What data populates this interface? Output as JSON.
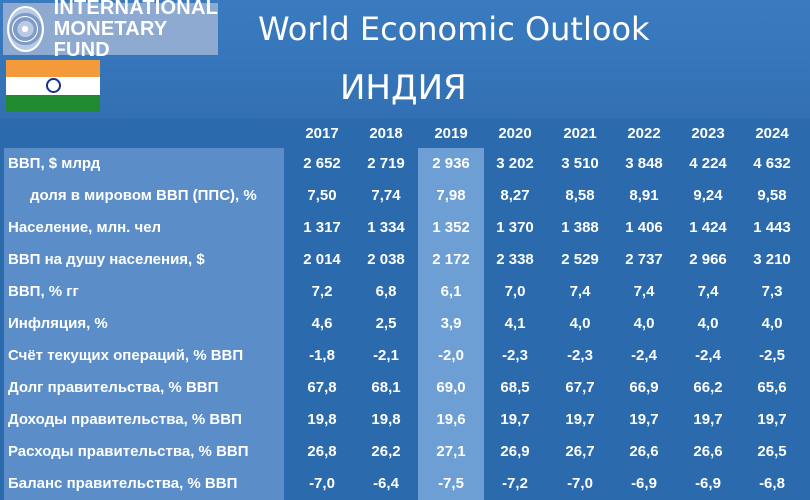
{
  "header": {
    "org_line1": "INTERNATIONAL",
    "org_line2": "MONETARY FUND",
    "title": "World Economic Outlook",
    "country": "ИНДИЯ",
    "logo_icon": "imf-seal-icon",
    "flag_icon": "india-flag-icon"
  },
  "years": [
    "2017",
    "2018",
    "2019",
    "2020",
    "2021",
    "2022",
    "2023",
    "2024"
  ],
  "rows": [
    {
      "label": "ВВП, $ млрд",
      "indent": false,
      "values": [
        "2 652",
        "2 719",
        "2 936",
        "3 202",
        "3 510",
        "3 848",
        "4 224",
        "4 632"
      ]
    },
    {
      "label": "доля в мировом ВВП (ППС), %",
      "indent": true,
      "values": [
        "7,50",
        "7,74",
        "7,98",
        "8,27",
        "8,58",
        "8,91",
        "9,24",
        "9,58"
      ]
    },
    {
      "label": "Население, млн. чел",
      "indent": false,
      "values": [
        "1 317",
        "1 334",
        "1 352",
        "1 370",
        "1 388",
        "1 406",
        "1 424",
        "1 443"
      ]
    },
    {
      "label": "ВВП на душу населения, $",
      "indent": false,
      "values": [
        "2 014",
        "2 038",
        "2 172",
        "2 338",
        "2 529",
        "2 737",
        "2 966",
        "3 210"
      ]
    },
    {
      "label": "ВВП, % гг",
      "indent": false,
      "values": [
        "7,2",
        "6,8",
        "6,1",
        "7,0",
        "7,4",
        "7,4",
        "7,4",
        "7,3"
      ]
    },
    {
      "label": "Инфляция, %",
      "indent": false,
      "values": [
        "4,6",
        "2,5",
        "3,9",
        "4,1",
        "4,0",
        "4,0",
        "4,0",
        "4,0"
      ]
    },
    {
      "label": "Счёт текущих операций, % ВВП",
      "indent": false,
      "values": [
        "-1,8",
        "-2,1",
        "-2,0",
        "-2,3",
        "-2,3",
        "-2,4",
        "-2,4",
        "-2,5"
      ]
    },
    {
      "label": "Долг правительства, % ВВП",
      "indent": false,
      "values": [
        "67,8",
        "68,1",
        "69,0",
        "68,5",
        "67,7",
        "66,9",
        "66,2",
        "65,6"
      ]
    },
    {
      "label": "Доходы правительства, % ВВП",
      "indent": false,
      "values": [
        "19,8",
        "19,8",
        "19,6",
        "19,7",
        "19,7",
        "19,7",
        "19,7",
        "19,7"
      ]
    },
    {
      "label": "Расходы правительства, % ВВП",
      "indent": false,
      "values": [
        "26,8",
        "26,2",
        "27,1",
        "26,9",
        "26,7",
        "26,6",
        "26,6",
        "26,5"
      ]
    },
    {
      "label": "Баланс правительства, % ВВП",
      "indent": false,
      "values": [
        "-7,0",
        "-6,4",
        "-7,5",
        "-7,2",
        "-7,0",
        "-6,9",
        "-6,9",
        "-6,8"
      ]
    }
  ]
}
